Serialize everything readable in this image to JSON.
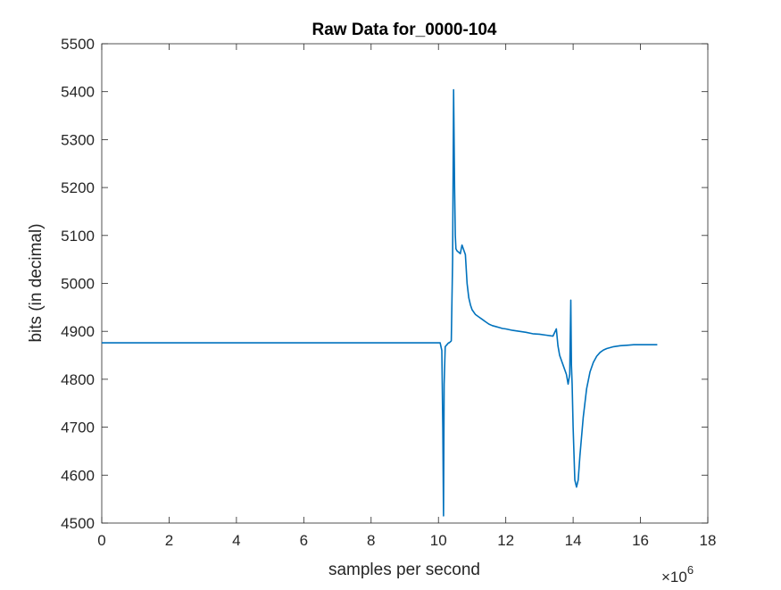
{
  "chart_data": {
    "type": "line",
    "title": "Raw Data for_0000-104",
    "xlabel": "samples per second",
    "ylabel": "bits (in decimal)",
    "x_exponent_label": "×10",
    "x_exponent_power": "6",
    "xlim": [
      0,
      18
    ],
    "ylim": [
      4500,
      5500
    ],
    "x_scale_factor": 1000000,
    "xticks": [
      0,
      2,
      4,
      6,
      8,
      10,
      12,
      14,
      16,
      18
    ],
    "yticks": [
      4500,
      4600,
      4700,
      4800,
      4900,
      5000,
      5100,
      5200,
      5300,
      5400,
      5500
    ],
    "grid": false,
    "line_color": "#0072BD",
    "series": [
      {
        "x": [
          0,
          10.05,
          10.1,
          10.13,
          10.15,
          10.17,
          10.2,
          10.25,
          10.3,
          10.32,
          10.38,
          10.42,
          10.45,
          10.48,
          10.5,
          10.52,
          10.55,
          10.6,
          10.65,
          10.7,
          10.8,
          10.85,
          10.9,
          10.95,
          11.0,
          11.1,
          11.2,
          11.3,
          11.4,
          11.5,
          11.6,
          11.7,
          11.8,
          11.9,
          12.0,
          12.2,
          12.4,
          12.6,
          12.8,
          13.0,
          13.2,
          13.4,
          13.5,
          13.55,
          13.6,
          13.7,
          13.8,
          13.85,
          13.9,
          13.93,
          13.95,
          13.97,
          14.0,
          14.05,
          14.1,
          14.15,
          14.2,
          14.3,
          14.4,
          14.5,
          14.6,
          14.7,
          14.8,
          14.9,
          15.0,
          15.2,
          15.4,
          15.6,
          15.8,
          16.0,
          16.2,
          16.5
        ],
        "y": [
          4876,
          4876,
          4860,
          4700,
          4515,
          4790,
          4868,
          4872,
          4876,
          4876,
          4880,
          5050,
          5404,
          5200,
          5100,
          5072,
          5068,
          5065,
          5062,
          5080,
          5060,
          5000,
          4970,
          4955,
          4945,
          4935,
          4930,
          4925,
          4920,
          4915,
          4912,
          4910,
          4908,
          4906,
          4905,
          4902,
          4900,
          4898,
          4895,
          4894,
          4892,
          4890,
          4905,
          4870,
          4850,
          4830,
          4810,
          4790,
          4810,
          4965,
          4830,
          4790,
          4700,
          4590,
          4575,
          4590,
          4640,
          4720,
          4780,
          4815,
          4835,
          4848,
          4856,
          4861,
          4864,
          4868,
          4870,
          4871,
          4872,
          4872,
          4872,
          4872
        ]
      }
    ]
  }
}
